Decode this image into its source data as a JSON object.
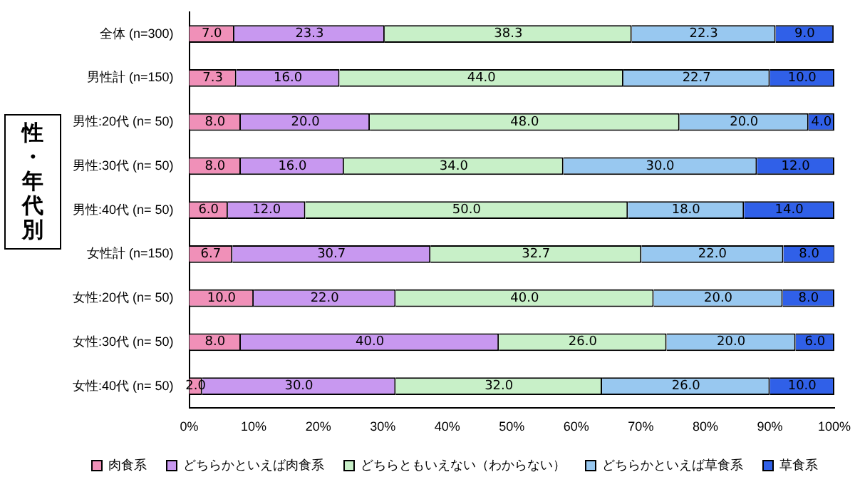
{
  "chart_data": {
    "type": "bar",
    "orientation": "horizontal",
    "stacked": true,
    "ylabel": "性・年代別",
    "categories": [
      "全体 (n=300)",
      "男性計 (n=150)",
      "男性:20代 (n= 50)",
      "男性:30代 (n= 50)",
      "男性:40代 (n= 50)",
      "女性計 (n=150)",
      "女性:20代 (n= 50)",
      "女性:30代 (n= 50)",
      "女性:40代 (n= 50)"
    ],
    "series": [
      {
        "name": "肉食系",
        "color": "#f090b8",
        "values": [
          7.0,
          7.3,
          8.0,
          8.0,
          6.0,
          6.7,
          10.0,
          8.0,
          2.0
        ],
        "value_labels": [
          "7.0",
          "7.3",
          "8.0",
          "8.0",
          "6.0",
          "6.7",
          "10.0",
          "8.0",
          "2.0"
        ]
      },
      {
        "name": "どちらかといえば肉食系",
        "color": "#c898f0",
        "values": [
          23.3,
          16.0,
          20.0,
          16.0,
          12.0,
          30.7,
          22.0,
          40.0,
          30.0
        ],
        "value_labels": [
          "23.3",
          "16.0",
          "20.0",
          "16.0",
          "12.0",
          "30.7",
          "22.0",
          "40.0",
          "30.0"
        ]
      },
      {
        "name": "どちらともいえない（わからない）",
        "color": "#c8f0c8",
        "values": [
          38.3,
          44.0,
          48.0,
          34.0,
          50.0,
          32.7,
          40.0,
          26.0,
          32.0
        ],
        "value_labels": [
          "38.3",
          "44.0",
          "48.0",
          "34.0",
          "50.0",
          "32.7",
          "40.0",
          "26.0",
          "32.0"
        ]
      },
      {
        "name": "どちらかといえば草食系",
        "color": "#98c8f0",
        "values": [
          22.3,
          22.7,
          20.0,
          30.0,
          18.0,
          22.0,
          20.0,
          20.0,
          26.0
        ],
        "value_labels": [
          "22.3",
          "22.7",
          "20.0",
          "30.0",
          "18.0",
          "22.0",
          "20.0",
          "20.0",
          "26.0"
        ]
      },
      {
        "name": "草食系",
        "color": "#3060e8",
        "values": [
          9.0,
          10.0,
          4.0,
          12.0,
          14.0,
          8.0,
          8.0,
          6.0,
          10.0
        ],
        "value_labels": [
          "9.0",
          "10.0",
          "4.0",
          "12.0",
          "14.0",
          "8.0",
          "8.0",
          "6.0",
          "10.0"
        ]
      }
    ],
    "xlim": [
      0,
      100
    ],
    "xticks": [
      {
        "value": 0,
        "label": "0%"
      },
      {
        "value": 10,
        "label": "10%"
      },
      {
        "value": 20,
        "label": "20%"
      },
      {
        "value": 30,
        "label": "30%"
      },
      {
        "value": 40,
        "label": "40%"
      },
      {
        "value": 50,
        "label": "50%"
      },
      {
        "value": 60,
        "label": "60%"
      },
      {
        "value": 70,
        "label": "70%"
      },
      {
        "value": 80,
        "label": "80%"
      },
      {
        "value": 90,
        "label": "90%"
      },
      {
        "value": 100,
        "label": "100%"
      }
    ],
    "grid": false,
    "legend": "bottom"
  }
}
